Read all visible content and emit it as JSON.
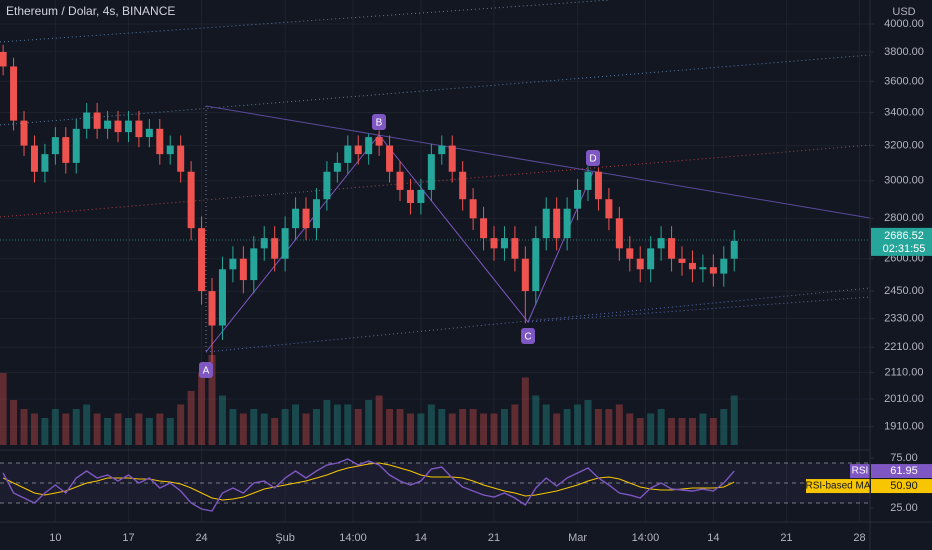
{
  "chart_data": {
    "type": "candlestick",
    "title": "Ethereum / Dolar, 4s, BINANCE",
    "currency": "USD",
    "countdown": "02:31:55",
    "log_scale": true,
    "up_color": "#26a69a",
    "down_color": "#ef5350",
    "xlim": [
      -5.3,
      78
    ],
    "xticks": [
      {
        "value": 0,
        "label": "10"
      },
      {
        "value": 7,
        "label": "17"
      },
      {
        "value": 14,
        "label": "24"
      },
      {
        "value": 22,
        "label": "Şub"
      },
      {
        "value": 28.5,
        "label": "14:00"
      },
      {
        "value": 35,
        "label": "14"
      },
      {
        "value": 42,
        "label": "21"
      },
      {
        "value": 50,
        "label": "Mar"
      },
      {
        "value": 56.5,
        "label": "14:00"
      },
      {
        "value": 63,
        "label": "14"
      },
      {
        "value": 70,
        "label": "21"
      },
      {
        "value": 77,
        "label": "28"
      }
    ],
    "ylim": [
      1797,
      4180
    ],
    "yticks": [
      {
        "value": 4000,
        "label": "4000.00"
      },
      {
        "value": 3800,
        "label": "3800.00"
      },
      {
        "value": 3600,
        "label": "3600.00"
      },
      {
        "value": 3400,
        "label": "3400.00"
      },
      {
        "value": 3200,
        "label": "3200.00"
      },
      {
        "value": 3000,
        "label": "3000.00"
      },
      {
        "value": 2800,
        "label": "2800.00"
      },
      {
        "value": 2600,
        "label": "2600.00"
      },
      {
        "value": 2450,
        "label": "2450.00"
      },
      {
        "value": 2330,
        "label": "2330.00"
      },
      {
        "value": 2210,
        "label": "2210.00"
      },
      {
        "value": 2110,
        "label": "2110.00"
      },
      {
        "value": 2010,
        "label": "2010.00"
      },
      {
        "value": 1910,
        "label": "1910.00"
      }
    ],
    "grid": true,
    "pattern_labels": [
      "A",
      "B",
      "C",
      "D"
    ],
    "x": [
      -5,
      -4,
      -3,
      -2,
      -1,
      0,
      1,
      2,
      3,
      4,
      5,
      6,
      7,
      8,
      9,
      10,
      11,
      12,
      13,
      14,
      15,
      16,
      17,
      18,
      19,
      20,
      21,
      22,
      23,
      24,
      25,
      26,
      27,
      28,
      29,
      30,
      31,
      32,
      33,
      34,
      35,
      36,
      37,
      38,
      39,
      40,
      41,
      42,
      43,
      44,
      45,
      46,
      47,
      48,
      49,
      50,
      51,
      52,
      53,
      54,
      55,
      56,
      57,
      58,
      59,
      60,
      61,
      62,
      63,
      64,
      65
    ],
    "open": [
      3800,
      3700,
      3350,
      3200,
      3050,
      3150,
      3250,
      3100,
      3300,
      3400,
      3300,
      3350,
      3280,
      3350,
      3250,
      3300,
      3150,
      3200,
      3050,
      2750,
      2450,
      2300,
      2550,
      2600,
      2500,
      2650,
      2700,
      2600,
      2750,
      2850,
      2750,
      2900,
      3050,
      3100,
      3200,
      3150,
      3250,
      3200,
      3050,
      2950,
      2880,
      2950,
      3150,
      3200,
      3050,
      2900,
      2800,
      2700,
      2650,
      2700,
      2600,
      2450,
      2700,
      2850,
      2700,
      2850,
      2950,
      3050,
      2900,
      2800,
      2650,
      2600,
      2550,
      2650,
      2700,
      2600,
      2580,
      2550,
      2560,
      2530,
      2600
    ],
    "high": [
      3850,
      3760,
      3410,
      3260,
      3210,
      3310,
      3310,
      3360,
      3460,
      3460,
      3410,
      3410,
      3410,
      3410,
      3360,
      3360,
      3260,
      3260,
      3110,
      2810,
      2510,
      2610,
      2660,
      2660,
      2710,
      2760,
      2760,
      2810,
      2910,
      2910,
      2960,
      3110,
      3160,
      3260,
      3260,
      3270,
      3290,
      3260,
      3110,
      3010,
      3010,
      3210,
      3260,
      3260,
      3110,
      2960,
      2860,
      2760,
      2760,
      2760,
      2660,
      2760,
      2910,
      2910,
      2910,
      3010,
      3080,
      3070,
      2960,
      2860,
      2710,
      2660,
      2710,
      2760,
      2760,
      2660,
      2640,
      2620,
      2620,
      2660,
      2740
    ],
    "low": [
      3640,
      3290,
      3140,
      2990,
      2990,
      3090,
      3040,
      3040,
      3240,
      3240,
      3240,
      3220,
      3220,
      3190,
      3190,
      3090,
      3090,
      2990,
      2690,
      2390,
      2150,
      2240,
      2490,
      2440,
      2440,
      2590,
      2540,
      2540,
      2690,
      2690,
      2690,
      2840,
      2990,
      3040,
      3090,
      3090,
      3140,
      2990,
      2890,
      2820,
      2820,
      2890,
      3090,
      2990,
      2840,
      2740,
      2640,
      2590,
      2590,
      2540,
      2310,
      2390,
      2640,
      2640,
      2640,
      2790,
      2890,
      2840,
      2740,
      2590,
      2540,
      2490,
      2490,
      2590,
      2540,
      2520,
      2490,
      2490,
      2470,
      2470,
      2540
    ],
    "close": [
      3700,
      3350,
      3200,
      3050,
      3150,
      3250,
      3100,
      3300,
      3400,
      3300,
      3350,
      3280,
      3350,
      3250,
      3300,
      3150,
      3200,
      3050,
      2750,
      2450,
      2300,
      2550,
      2600,
      2500,
      2650,
      2700,
      2600,
      2750,
      2850,
      2750,
      2900,
      3050,
      3100,
      3200,
      3150,
      3250,
      3200,
      3050,
      2950,
      2880,
      2950,
      3150,
      3200,
      3050,
      2900,
      2800,
      2700,
      2650,
      2700,
      2600,
      2450,
      2700,
      2850,
      2700,
      2850,
      2950,
      3050,
      2900,
      2800,
      2650,
      2600,
      2550,
      2650,
      2700,
      2600,
      2580,
      2550,
      2560,
      2530,
      2600,
      2686.52
    ],
    "volume": [
      80,
      50,
      40,
      35,
      30,
      40,
      35,
      40,
      45,
      35,
      30,
      35,
      30,
      35,
      30,
      35,
      30,
      45,
      60,
      80,
      100,
      55,
      40,
      35,
      40,
      35,
      30,
      40,
      45,
      35,
      40,
      50,
      45,
      45,
      40,
      50,
      55,
      40,
      40,
      35,
      35,
      45,
      40,
      35,
      40,
      40,
      35,
      35,
      40,
      45,
      75,
      55,
      45,
      35,
      40,
      45,
      50,
      40,
      40,
      45,
      35,
      30,
      35,
      40,
      30,
      30,
      30,
      35,
      30,
      40,
      55
    ],
    "rsi": {
      "name": "RSI",
      "color": "#7e57c2",
      "ylim": [
        13,
        81
      ],
      "yticks": [
        {
          "value": 75,
          "label": "75.00"
        },
        {
          "value": 25,
          "label": "25.00"
        }
      ],
      "bands": [
        70,
        50,
        30
      ],
      "values": [
        60,
        40,
        35,
        30,
        40,
        48,
        40,
        55,
        62,
        55,
        58,
        52,
        58,
        50,
        55,
        45,
        50,
        42,
        30,
        24,
        22,
        40,
        45,
        40,
        50,
        52,
        45,
        55,
        62,
        55,
        62,
        68,
        70,
        74,
        68,
        72,
        68,
        58,
        52,
        48,
        52,
        64,
        66,
        55,
        46,
        42,
        38,
        36,
        40,
        35,
        28,
        45,
        55,
        47,
        55,
        60,
        65,
        55,
        48,
        40,
        38,
        35,
        45,
        50,
        44,
        43,
        42,
        44,
        42,
        50,
        61.95
      ],
      "ma": {
        "name": "RSI-based MA",
        "color": "#f7c600",
        "last_label": "50.90",
        "values": [
          55,
          50,
          45,
          40,
          38,
          40,
          42,
          46,
          50,
          52,
          55,
          55,
          55,
          54,
          54,
          52,
          51,
          49,
          45,
          40,
          35,
          33,
          34,
          36,
          40,
          44,
          46,
          48,
          50,
          52,
          55,
          58,
          62,
          65,
          67,
          69,
          70,
          68,
          65,
          62,
          58,
          56,
          56,
          56,
          55,
          52,
          48,
          45,
          42,
          40,
          37,
          38,
          40,
          42,
          45,
          48,
          52,
          55,
          56,
          54,
          50,
          46,
          44,
          43,
          43,
          44,
          45,
          45,
          45,
          46,
          50.9
        ]
      }
    }
  }
}
